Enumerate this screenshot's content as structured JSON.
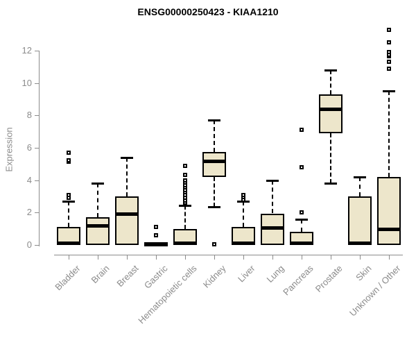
{
  "chart_data": {
    "type": "boxplot",
    "title": "ENSG00000250423 - KIAA1210",
    "xlabel": "",
    "ylabel": "Expression",
    "yticks": [
      0,
      2,
      4,
      6,
      8,
      10,
      12
    ],
    "ylim": [
      -0.4,
      13.6
    ],
    "grid": false,
    "legend": null,
    "categories": [
      "Bladder",
      "Brain",
      "Breast",
      "Gastric",
      "Hematopoietic cells",
      "Kidney",
      "Liver",
      "Lung",
      "Pancreas",
      "Prostate",
      "Skin",
      "Unknown / Other"
    ],
    "boxes": [
      {
        "category": "Bladder",
        "whisker_low": 0,
        "q1": 0,
        "median": 0.1,
        "q3": 1.1,
        "whisker_high": 2.7,
        "outliers": [
          2.9,
          3.1,
          5.15,
          5.25,
          5.7
        ]
      },
      {
        "category": "Brain",
        "whisker_low": 0,
        "q1": 0,
        "median": 1.2,
        "q3": 1.7,
        "whisker_high": 3.8,
        "outliers": []
      },
      {
        "category": "Breast",
        "whisker_low": 0,
        "q1": 0,
        "median": 1.9,
        "q3": 3.0,
        "whisker_high": 5.4,
        "outliers": []
      },
      {
        "category": "Gastric",
        "whisker_low": 0,
        "q1": 0,
        "median": 0.05,
        "q3": 0.1,
        "whisker_high": 0.1,
        "outliers": [
          0.6,
          1.1
        ]
      },
      {
        "category": "Hematopoietic cells",
        "whisker_low": 0,
        "q1": 0,
        "median": 0.1,
        "q3": 1.0,
        "whisker_high": 2.45,
        "outliers": [
          2.6,
          2.75,
          2.9,
          3.1,
          3.25,
          3.4,
          3.55,
          3.7,
          3.85,
          4.0,
          4.35,
          4.9
        ]
      },
      {
        "category": "Kidney",
        "whisker_low": 2.35,
        "q1": 4.2,
        "median": 5.15,
        "q3": 5.75,
        "whisker_high": 7.7,
        "outliers": [
          0.05
        ]
      },
      {
        "category": "Liver",
        "whisker_low": 0,
        "q1": 0,
        "median": 0.1,
        "q3": 1.1,
        "whisker_high": 2.7,
        "outliers": [
          2.8,
          2.95,
          3.1
        ]
      },
      {
        "category": "Lung",
        "whisker_low": 0,
        "q1": 0,
        "median": 1.05,
        "q3": 1.95,
        "whisker_high": 4.0,
        "outliers": []
      },
      {
        "category": "Pancreas",
        "whisker_low": 0,
        "q1": 0,
        "median": 0.1,
        "q3": 0.8,
        "whisker_high": 1.6,
        "outliers": [
          2.0,
          4.8,
          7.1
        ]
      },
      {
        "category": "Prostate",
        "whisker_low": 3.8,
        "q1": 6.9,
        "median": 8.4,
        "q3": 9.3,
        "whisker_high": 10.8,
        "outliers": []
      },
      {
        "category": "Skin",
        "whisker_low": 0,
        "q1": 0,
        "median": 0.1,
        "q3": 3.0,
        "whisker_high": 4.2,
        "outliers": []
      },
      {
        "category": "Unknown / Other",
        "whisker_low": 0,
        "q1": 0,
        "median": 0.95,
        "q3": 4.2,
        "whisker_high": 9.5,
        "outliers": [
          10.9,
          11.3,
          11.65,
          11.75,
          11.9,
          12.5,
          13.3
        ]
      }
    ],
    "colors": {
      "box_fill": "#ede6cb",
      "box_border": "#000000",
      "median": "#000000",
      "whisker": "#000000",
      "axis": "#8b8b8b",
      "tick_text": "#8b8b8b",
      "title_text": "#000000",
      "background": "#ffffff"
    }
  }
}
